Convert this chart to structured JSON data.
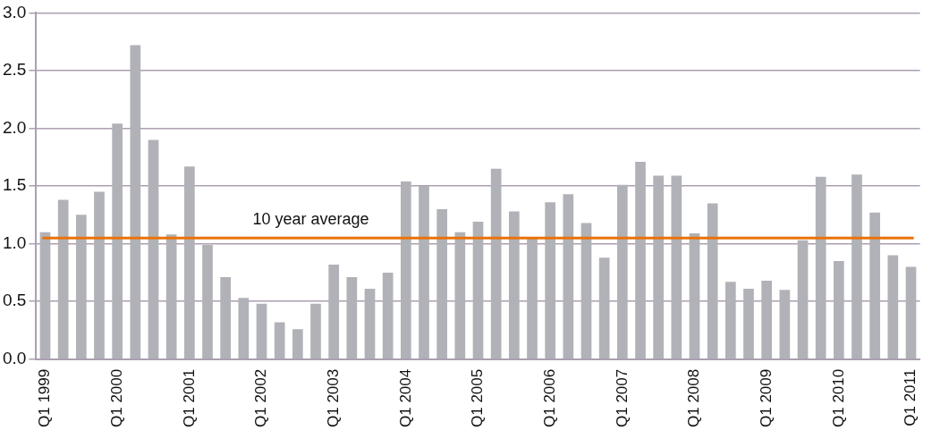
{
  "chart_data": {
    "type": "bar",
    "categories": [
      "Q1 1999",
      null,
      null,
      null,
      "Q1 2000",
      null,
      null,
      null,
      "Q1 2001",
      null,
      null,
      null,
      "Q1 2002",
      null,
      null,
      null,
      "Q1 2003",
      null,
      null,
      null,
      "Q1 2004",
      null,
      null,
      null,
      "Q1 2005",
      null,
      null,
      null,
      "Q1 2006",
      null,
      null,
      null,
      "Q1 2007",
      null,
      null,
      null,
      "Q1 2008",
      null,
      null,
      null,
      "Q1 2009",
      null,
      null,
      null,
      "Q1 2010",
      null,
      null,
      null,
      "Q1 2011"
    ],
    "values": [
      1.1,
      1.38,
      1.25,
      1.45,
      2.04,
      2.72,
      1.9,
      1.08,
      1.67,
      0.99,
      0.71,
      0.53,
      0.48,
      0.32,
      0.26,
      0.48,
      0.82,
      0.71,
      0.61,
      0.75,
      1.54,
      1.5,
      1.3,
      1.1,
      1.19,
      1.65,
      1.28,
      1.05,
      1.36,
      1.43,
      1.18,
      0.88,
      1.51,
      1.71,
      1.59,
      1.59,
      1.09,
      1.35,
      0.67,
      0.61,
      0.68,
      0.6,
      1.03,
      1.58,
      0.85,
      1.6,
      1.27,
      0.9,
      0.8
    ],
    "color": "#b1b2b7",
    "ylim": [
      0,
      3
    ],
    "yticks": [
      {
        "value": 0,
        "label": "0.0"
      },
      {
        "value": 0.5,
        "label": "0.5"
      },
      {
        "value": 1,
        "label": "1.0"
      },
      {
        "value": 1.5,
        "label": "1.5"
      },
      {
        "value": 2,
        "label": "2.0"
      },
      {
        "value": 2.5,
        "label": "2.5"
      },
      {
        "value": 3,
        "label": "3.0"
      }
    ],
    "grid": "y",
    "legend": false,
    "ref_lines": [
      {
        "axis": "y",
        "value": 1.05,
        "label": "10 year average",
        "color": "#e8730c"
      }
    ]
  }
}
